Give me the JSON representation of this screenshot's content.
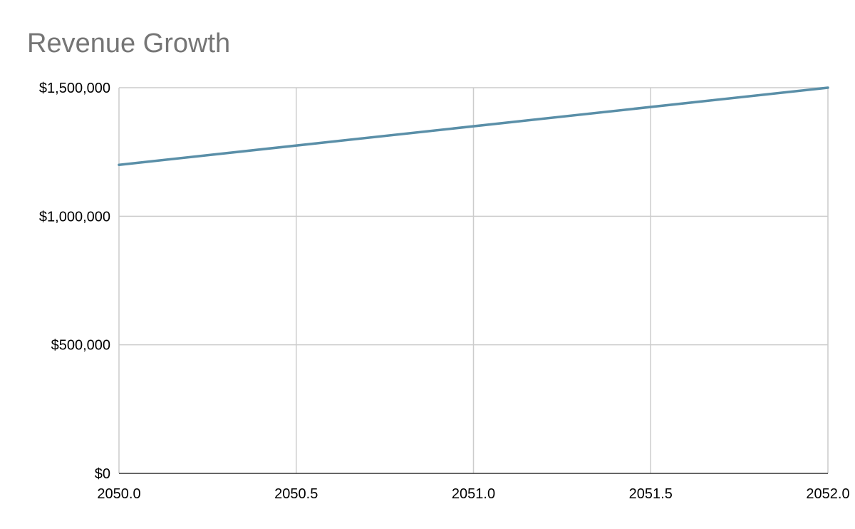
{
  "chart_data": {
    "type": "line",
    "title": "Revenue Growth",
    "xlabel": "",
    "ylabel": "",
    "xlim": [
      2050.0,
      2052.0
    ],
    "ylim": [
      0,
      1500000
    ],
    "x_ticks": [
      "2050.0",
      "2050.5",
      "2051.0",
      "2051.5",
      "2052.0"
    ],
    "y_ticks": [
      "$0",
      "$500,000",
      "$1,000,000",
      "$1,500,000"
    ],
    "grid": true,
    "legend": "none",
    "series": [
      {
        "color": "#5a8fa8",
        "x": [
          2050.0,
          2052.0
        ],
        "y": [
          1200000,
          1500000
        ]
      }
    ]
  }
}
